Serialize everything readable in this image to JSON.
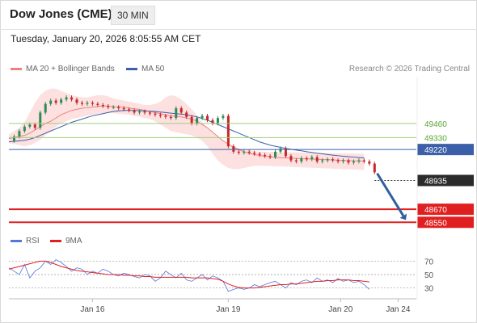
{
  "header": {
    "title": "Dow Jones (CME)",
    "timeframe": "30 MIN"
  },
  "datetime": "Tuesday, January 20, 2026 8:05:55 AM CET",
  "legend": [
    {
      "label": "MA 20 + Bollinger Bands",
      "color": "#f08080"
    },
    {
      "label": "MA 50",
      "color": "#3b5fa8"
    }
  ],
  "rsi_legend": [
    {
      "label": "RSI",
      "color": "#5577dd"
    },
    {
      "label": "9MA",
      "color": "#e02020"
    }
  ],
  "copyright": "Research © 2026 Trading Central",
  "colors": {
    "support": "#e02020",
    "resistance": "#9dd17a",
    "pivot": "#3b5fa8",
    "up_candle": "#2e8b57",
    "down_candle": "#c62828",
    "bollinger_fill": "#fde0e0"
  },
  "chart_data": {
    "type": "line",
    "y_range": [
      48515,
      49890
    ],
    "x_tick_labels": [
      {
        "label": "Jan 16",
        "x": 16
      },
      {
        "label": "Jan 19",
        "x": 42
      },
      {
        "label": "Jan 20",
        "x": 63.5
      },
      {
        "label": "Jan 24",
        "x": 74.5
      }
    ],
    "x_range": [
      0,
      78
    ],
    "levels": [
      {
        "value": 49460,
        "label": "49460",
        "kind": "resistance"
      },
      {
        "value": 49330,
        "label": "49330",
        "kind": "resistance"
      },
      {
        "value": 49220,
        "label": "49220",
        "kind": "pivot"
      },
      {
        "value": 48670,
        "label": "48670",
        "kind": "support"
      },
      {
        "value": 48550,
        "label": "48550",
        "kind": "support"
      }
    ],
    "last_price": {
      "value": 48935,
      "label": "48935"
    },
    "close_series": [
      49300,
      49340,
      49390,
      49430,
      49450,
      49420,
      49560,
      49640,
      49670,
      49650,
      49680,
      49700,
      49680,
      49650,
      49640,
      49650,
      49640,
      49630,
      49620,
      49610,
      49610,
      49600,
      49590,
      49580,
      49560,
      49570,
      49560,
      49550,
      49540,
      49530,
      49520,
      49510,
      49600,
      49560,
      49520,
      49460,
      49510,
      49530,
      49490,
      49460,
      49510,
      49530,
      49250,
      49200,
      49190,
      49200,
      49190,
      49180,
      49170,
      49160,
      49150,
      49200,
      49230,
      49160,
      49120,
      49110,
      49140,
      49130,
      49150,
      49110,
      49120,
      49130,
      49120,
      49110,
      49120,
      49100,
      49110,
      49120,
      49110,
      49090,
      49010
    ],
    "ma20_series": [
      49320,
      49330,
      49340,
      49350,
      49370,
      49400,
      49430,
      49460,
      49480,
      49510,
      49540,
      49560,
      49580,
      49590,
      49600,
      49605,
      49610,
      49615,
      49620,
      49620,
      49615,
      49610,
      49610,
      49600,
      49595,
      49590,
      49580,
      49570,
      49560,
      49550,
      49540,
      49530,
      49525,
      49520,
      49510,
      49500,
      49480,
      49450,
      49420,
      49380,
      49340,
      49300,
      49270,
      49240,
      49220,
      49200,
      49185,
      49175,
      49165,
      49158,
      49152,
      49148,
      49145,
      49143,
      49140,
      49138,
      49136,
      49134,
      49132,
      49130,
      49128,
      49126,
      49124,
      49122,
      49120,
      49118,
      49116,
      49114,
      49112
    ],
    "bb_upper_series": [
      49360,
      49390,
      49420,
      49470,
      49560,
      49650,
      49720,
      49760,
      49780,
      49780,
      49760,
      49740,
      49720,
      49710,
      49700,
      49700,
      49710,
      49720,
      49720,
      49710,
      49690,
      49680,
      49670,
      49660,
      49650,
      49640,
      49630,
      49630,
      49640,
      49660,
      49700,
      49720,
      49710,
      49680,
      49640,
      49590,
      49530,
      49470,
      49420,
      49380,
      49340,
      49300,
      49270,
      49250,
      49230,
      49220,
      49210,
      49205,
      49200,
      49200,
      49198,
      49198,
      49196,
      49195,
      49194,
      49193,
      49192,
      49191,
      49190,
      49189,
      49188,
      49187,
      49186,
      49185,
      49184,
      49183,
      49182,
      49181,
      49180
    ],
    "bb_lower_series": [
      49280,
      49270,
      49260,
      49250,
      49260,
      49280,
      49310,
      49350,
      49390,
      49430,
      49460,
      49480,
      49500,
      49510,
      49520,
      49530,
      49540,
      49550,
      49555,
      49560,
      49555,
      49550,
      49545,
      49540,
      49530,
      49520,
      49510,
      49500,
      49480,
      49450,
      49420,
      49390,
      49380,
      49370,
      49360,
      49350,
      49330,
      49300,
      49250,
      49180,
      49120,
      49080,
      49050,
      49040,
      49040,
      49050,
      49060,
      49070,
      49070,
      49070,
      49068,
      49066,
      49064,
      49062,
      49060,
      49058,
      49056,
      49054,
      49052,
      49050,
      49048,
      49046,
      49044,
      49042,
      49040,
      49038,
      49036,
      49034,
      49032
    ],
    "ma50_series": [
      49290,
      49295,
      49300,
      49305,
      49315,
      49330,
      49350,
      49370,
      49390,
      49410,
      49430,
      49450,
      49470,
      49485,
      49500,
      49515,
      49530,
      49540,
      49550,
      49560,
      49570,
      49575,
      49580,
      49580,
      49580,
      49578,
      49575,
      49572,
      49570,
      49565,
      49560,
      49555,
      49550,
      49545,
      49540,
      49530,
      49520,
      49505,
      49490,
      49470,
      49450,
      49430,
      49410,
      49390,
      49370,
      49350,
      49330,
      49310,
      49290,
      49275,
      49260,
      49250,
      49240,
      49230,
      49222,
      49215,
      49208,
      49200,
      49193,
      49186,
      49180,
      49174,
      49168,
      49163,
      49158,
      49154,
      49150,
      49146,
      49143
    ],
    "forecast_arrow": {
      "from": [
        70.5,
        49000
      ],
      "to": [
        75.5,
        48610
      ]
    },
    "rsi": {
      "y_range": [
        20,
        80
      ],
      "ticks": [
        70,
        50,
        30
      ],
      "rsi_series": [
        60,
        55,
        50,
        65,
        45,
        55,
        60,
        70,
        65,
        72,
        68,
        62,
        55,
        60,
        58,
        50,
        55,
        52,
        58,
        55,
        50,
        48,
        52,
        50,
        47,
        45,
        50,
        48,
        40,
        45,
        55,
        50,
        45,
        52,
        42,
        40,
        45,
        50,
        42,
        48,
        45,
        40,
        25,
        28,
        30,
        28,
        30,
        35,
        32,
        35,
        38,
        40,
        35,
        30,
        38,
        35,
        40,
        42,
        38,
        45,
        40,
        42,
        38,
        44,
        40,
        42,
        38,
        40,
        35,
        28
      ],
      "ma9_series": [
        58,
        60,
        62,
        64,
        66,
        68,
        70,
        70,
        68,
        65,
        62,
        60,
        58,
        56,
        55,
        54,
        53,
        52,
        51,
        50,
        50,
        50,
        49,
        49,
        48,
        48,
        47,
        47,
        46,
        46,
        46,
        46,
        46,
        46,
        46,
        45,
        45,
        45,
        45,
        44,
        43,
        40,
        36,
        33,
        31,
        30,
        30,
        30,
        31,
        32,
        33,
        34,
        35,
        35,
        36,
        36,
        37,
        38,
        39,
        40,
        40,
        41,
        41,
        42,
        42,
        42,
        41,
        41,
        40,
        39
      ]
    }
  }
}
